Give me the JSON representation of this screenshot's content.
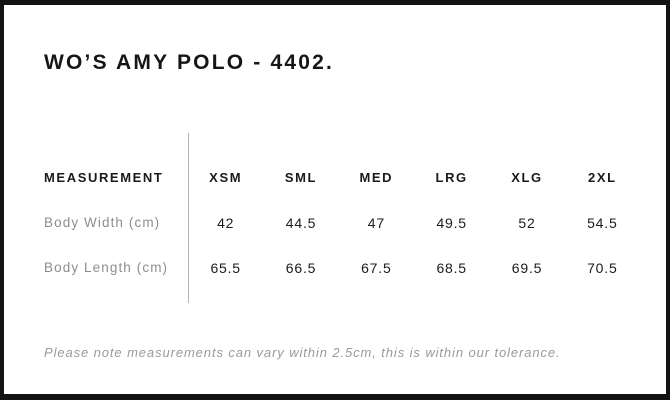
{
  "title": "WO’S AMY POLO - 4402.",
  "table": {
    "header_label": "MEASUREMENT",
    "sizes": [
      "XSM",
      "SML",
      "MED",
      "LRG",
      "XLG",
      "2XL"
    ],
    "rows": [
      {
        "label": "Body Width (cm)",
        "values": [
          "42",
          "44.5",
          "47",
          "49.5",
          "52",
          "54.5"
        ]
      },
      {
        "label": "Body Length (cm)",
        "values": [
          "65.5",
          "66.5",
          "67.5",
          "68.5",
          "69.5",
          "70.5"
        ]
      }
    ]
  },
  "note": "Please note measurements can vary within 2.5cm, this is within our tolerance.",
  "colors": {
    "frame_border": "#131313",
    "heading_text": "#161616",
    "value_text": "#1b1b1b",
    "row_label_text": "#8e8e8e",
    "note_text": "#9a9a9a",
    "divider_line": "#b4b4b4",
    "background": "#ffffff"
  },
  "chart_data": {
    "type": "table",
    "title": "WO’S AMY POLO - 4402.",
    "columns": [
      "MEASUREMENT",
      "XSM",
      "SML",
      "MED",
      "LRG",
      "XLG",
      "2XL"
    ],
    "rows": [
      [
        "Body Width (cm)",
        42,
        44.5,
        47,
        49.5,
        52,
        54.5
      ],
      [
        "Body Length (cm)",
        65.5,
        66.5,
        67.5,
        68.5,
        69.5,
        70.5
      ]
    ],
    "footnote": "Please note measurements can vary within 2.5cm, this is within our tolerance.",
    "layout": {
      "label_column_divider": true,
      "gridlines": false
    }
  }
}
